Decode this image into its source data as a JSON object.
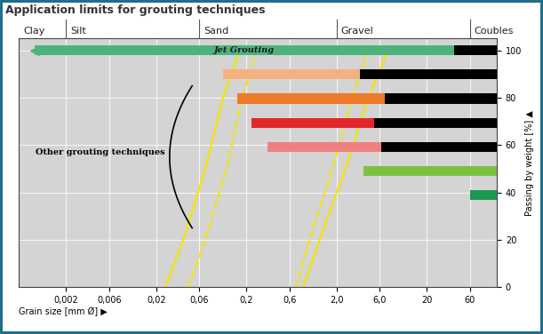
{
  "chart_data": {
    "type": "range",
    "orientation": "horizontal",
    "title": "Application limits for grouting techniques",
    "x_label": "Grain size [mm Ø] ▶",
    "y_label": "Passing by weight [%] ▲",
    "log": "x",
    "grid": true,
    "xlim": [
      0.0006,
      120
    ],
    "xticks": [
      {
        "value": 0.002,
        "label": "0,002"
      },
      {
        "value": 0.006,
        "label": "0,006"
      },
      {
        "value": 0.02,
        "label": "0,02"
      },
      {
        "value": 0.06,
        "label": "0,06"
      },
      {
        "value": 0.2,
        "label": "0,2"
      },
      {
        "value": 0.6,
        "label": "0,6"
      },
      {
        "value": 2.0,
        "label": "2,0"
      },
      {
        "value": 6.0,
        "label": "6,0"
      },
      20,
      60
    ],
    "ylim": [
      0,
      105
    ],
    "yticks": [
      0,
      20,
      40,
      60,
      80,
      100
    ],
    "soil_classes": {
      "names": [
        "Clay",
        "Silt",
        "Sand",
        "Gravel",
        "Coubles"
      ],
      "boundaries": [
        0.002,
        0.06,
        2.0,
        60
      ]
    },
    "series": [
      {
        "name": "Jet Grouting",
        "marker": "<",
        "segments": [
          {
            "start": 0.0009,
            "end": 40,
            "color": "#4db37e"
          },
          {
            "start": 40,
            "end": 120,
            "color": "#000000"
          }
        ]
      },
      {
        "segments": [
          {
            "start": 0.11,
            "end": 3.6,
            "color": "#f5b080"
          },
          {
            "start": 3.6,
            "end": 120,
            "color": "#000000"
          }
        ]
      },
      {
        "segments": [
          {
            "start": 0.16,
            "end": 6.8,
            "color": "#ee7a2a"
          },
          {
            "start": 6.8,
            "end": 120,
            "color": "#000000"
          }
        ]
      },
      {
        "segments": [
          {
            "start": 0.23,
            "end": 5.2,
            "color": "#e3262a"
          },
          {
            "start": 5.2,
            "end": 120,
            "color": "#000000"
          }
        ]
      },
      {
        "segments": [
          {
            "start": 0.34,
            "end": 6.3,
            "color": "#f08080"
          },
          {
            "start": 6.3,
            "end": 120,
            "color": "#000000"
          }
        ]
      },
      {
        "segments": [
          {
            "start": 4.0,
            "end": 120,
            "color": "#7ac142"
          }
        ]
      },
      {
        "segments": [
          {
            "start": 60,
            "end": 120,
            "color": "#1a9a50"
          }
        ]
      }
    ],
    "grading_curves": [
      {
        "line_style": "solid",
        "color": "#f5e400",
        "x": [
          0.025,
          0.04,
          0.07,
          0.11,
          0.17
        ],
        "y": [
          0,
          20,
          50,
          80,
          100
        ]
      },
      {
        "line_style": "dashed",
        "color": "#f5e400",
        "x": [
          0.045,
          0.07,
          0.12,
          0.18,
          0.26
        ],
        "y": [
          0,
          20,
          50,
          80,
          100
        ]
      },
      {
        "line_style": "dashed",
        "color": "#f5e400",
        "x": [
          0.7,
          1.0,
          1.8,
          3.0,
          4.5
        ],
        "y": [
          0,
          20,
          50,
          80,
          100
        ]
      },
      {
        "line_style": "solid",
        "color": "#f5e400",
        "x": [
          0.85,
          1.3,
          2.5,
          4.5,
          7.5
        ],
        "y": [
          0,
          20,
          50,
          80,
          100
        ]
      }
    ],
    "annotations": [
      {
        "text": "Other grouting techniques"
      }
    ]
  }
}
